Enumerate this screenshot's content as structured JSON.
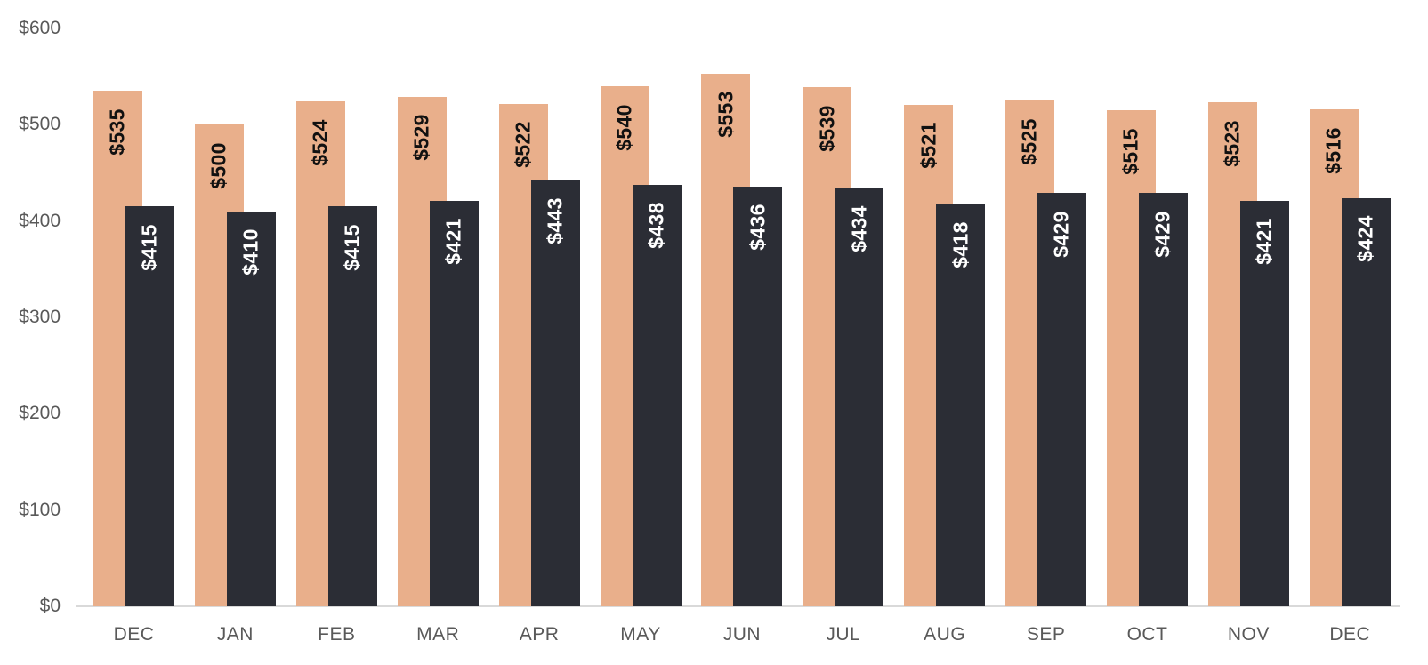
{
  "chart_data": {
    "type": "bar",
    "title": "",
    "categories": [
      "DEC",
      "JAN",
      "FEB",
      "MAR",
      "APR",
      "MAY",
      "JUN",
      "JUL",
      "AUG",
      "SEP",
      "OCT",
      "NOV",
      "DEC"
    ],
    "series": [
      {
        "name": "orange-series",
        "color": "#E9AF8B",
        "label_color": "#111111",
        "values": [
          535,
          500,
          524,
          529,
          522,
          540,
          553,
          539,
          521,
          525,
          515,
          523,
          516
        ],
        "labels": [
          "$535",
          "$500",
          "$524",
          "$529",
          "$522",
          "$540",
          "$553",
          "$539",
          "$521",
          "$525",
          "$515",
          "$523",
          "$516"
        ]
      },
      {
        "name": "dark-series",
        "color": "#2B2D35",
        "label_color": "#FFFFFF",
        "values": [
          415,
          410,
          415,
          421,
          443,
          438,
          436,
          434,
          418,
          429,
          429,
          421,
          424
        ],
        "labels": [
          "$415",
          "$410",
          "$415",
          "$421",
          "$443",
          "$438",
          "$436",
          "$434",
          "$418",
          "$429",
          "$429",
          "$421",
          "$424"
        ]
      }
    ],
    "value_prefix": "$",
    "y_axis": {
      "min": 0,
      "max": 600,
      "tick_interval": 100,
      "tick_values": [
        0,
        100,
        200,
        300,
        400,
        500,
        600
      ],
      "tick_labels": [
        "$0",
        "$100",
        "$200",
        "$300",
        "$400",
        "$500",
        "$600"
      ]
    },
    "x_axis": {
      "tick_labels": [
        "DEC",
        "JAN",
        "FEB",
        "MAR",
        "APR",
        "MAY",
        "JUN",
        "JUL",
        "AUG",
        "SEP",
        "OCT",
        "NOV",
        "DEC"
      ]
    },
    "legend": {
      "visible": false
    },
    "grid": false,
    "bar_label_rotation_deg": -90,
    "layout_hints": {
      "bars_overlap": true,
      "label_position": "inside-end"
    },
    "colors": {
      "background": "#FFFFFF",
      "axis_text": "#595959",
      "axis_line": "#D9D9D9"
    }
  }
}
